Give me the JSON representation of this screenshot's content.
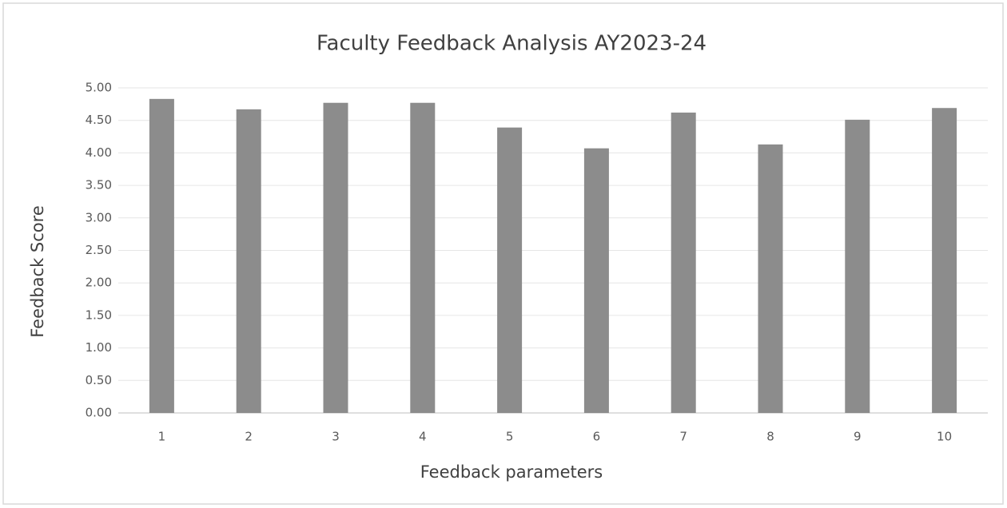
{
  "chart_data": {
    "type": "bar",
    "title": "Faculty Feedback Analysis AY2023-24",
    "x_label": "Feedback parameters",
    "y_label": "Feedback Score",
    "categories": [
      "1",
      "2",
      "3",
      "4",
      "5",
      "6",
      "7",
      "8",
      "9",
      "10"
    ],
    "values": [
      4.83,
      4.67,
      4.77,
      4.77,
      4.39,
      4.07,
      4.62,
      4.13,
      4.51,
      4.69
    ],
    "color": "#8c8c8c",
    "ylim": [
      0,
      5
    ],
    "yticks": [
      {
        "value": 0,
        "label": "0.00"
      },
      {
        "value": 0.5,
        "label": "0.50"
      },
      {
        "value": 1,
        "label": "1.00"
      },
      {
        "value": 1.5,
        "label": "1.50"
      },
      {
        "value": 2,
        "label": "2.00"
      },
      {
        "value": 2.5,
        "label": "2.50"
      },
      {
        "value": 3,
        "label": "3.00"
      },
      {
        "value": 3.5,
        "label": "3.50"
      },
      {
        "value": 4,
        "label": "4.00"
      },
      {
        "value": 4.5,
        "label": "4.50"
      },
      {
        "value": 5,
        "label": "5.00"
      }
    ],
    "grid": true
  }
}
